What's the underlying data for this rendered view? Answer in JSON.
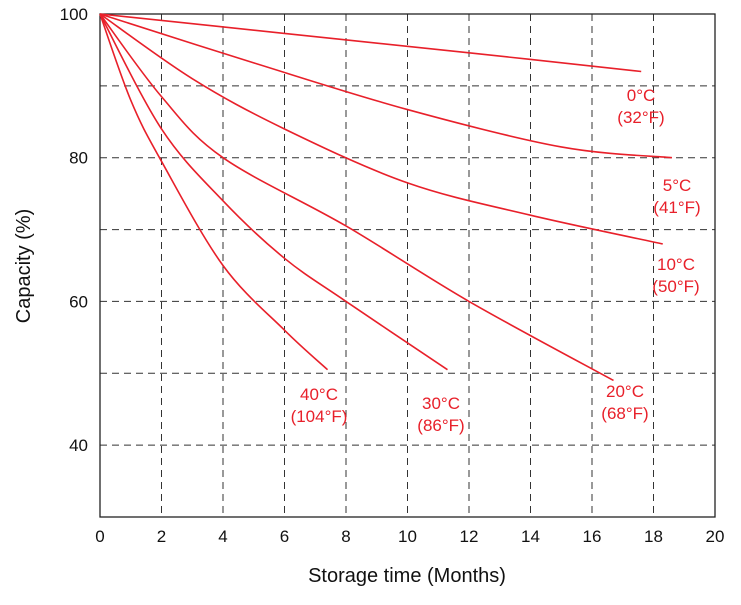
{
  "chart_data": {
    "type": "line",
    "title": "",
    "xlabel": "Storage time (Months)",
    "ylabel": "Capacity (%)",
    "xlim": [
      0,
      20
    ],
    "ylim": [
      30,
      100
    ],
    "xticks": [
      0,
      2,
      4,
      6,
      8,
      10,
      12,
      14,
      16,
      18,
      20
    ],
    "yticks": [
      40,
      60,
      80,
      100
    ],
    "grid": true,
    "grid_y": [
      40,
      50,
      60,
      70,
      80,
      90
    ],
    "line_color": "#e8202a",
    "series": [
      {
        "name": "0°C (32°F)",
        "label1": "0°C",
        "label2": "(32°F)",
        "x": [
          0,
          6,
          12,
          17.6
        ],
        "y": [
          100,
          97.3,
          94.6,
          92
        ]
      },
      {
        "name": "5°C (41°F)",
        "label1": "5°C",
        "label2": "(41°F)",
        "x": [
          0,
          5,
          10,
          15,
          18.6
        ],
        "y": [
          100,
          93.2,
          86.7,
          81.5,
          80
        ]
      },
      {
        "name": "10°C (50°F)",
        "label1": "10°C",
        "label2": "(50°F)",
        "x": [
          0,
          3,
          6,
          10,
          14,
          18.3
        ],
        "y": [
          100,
          91,
          84,
          76.5,
          72,
          68
        ]
      },
      {
        "name": "20°C (68°F)",
        "label1": "20°C",
        "label2": "(68°F)",
        "x": [
          0,
          2,
          4,
          8,
          12,
          16.7
        ],
        "y": [
          100,
          88.5,
          80,
          70.5,
          60,
          49
        ]
      },
      {
        "name": "30°C (86°F)",
        "label1": "30°C",
        "label2": "(86°F)",
        "x": [
          0,
          2,
          4,
          6,
          8,
          11.3
        ],
        "y": [
          100,
          84,
          74,
          66,
          60,
          50.5
        ]
      },
      {
        "name": "40°C (104°F)",
        "label1": "40°C",
        "label2": "(104°F)",
        "x": [
          0,
          1,
          2,
          4,
          6,
          7.4
        ],
        "y": [
          100,
          88,
          79.5,
          65,
          56,
          50.5
        ]
      }
    ]
  }
}
